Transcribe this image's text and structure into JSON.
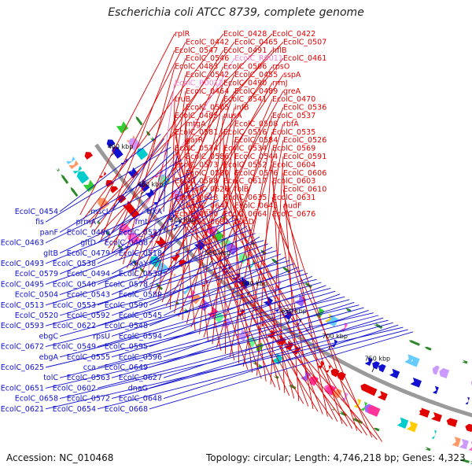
{
  "title": "Escherichia coli ATCC 8739, complete genome",
  "footer": {
    "accession": "Accession: NC_010468",
    "summary": "Topology: circular; Length: 4,746,218 bp; Genes: 4,323"
  },
  "colors": {
    "forward": "#e00000",
    "reverse": "#1010d0",
    "rna": "#f080d0",
    "backbone": "#9a9a9a",
    "tick_mark": "#2a8a2a"
  },
  "ticks": [
    "400 kbp",
    "450 kbp",
    "500 kbp",
    "550 kbp",
    "600 kbp",
    "650 kbp",
    "700 kbp",
    "750 kbp"
  ],
  "forward_labels": [
    "rplR",
    "EcolC_0428",
    "EcolC_0422",
    "EcolC_0442",
    "EcolC_0465",
    "EcolC_0507",
    "EcolC_0547",
    "EcolC_0491",
    "hflB",
    "EcolC_0546",
    "EcolC_R0011",
    "EcolC_0461",
    "EcolC_0483",
    "EcolC_0506",
    "rpsO",
    "EcolC_0542",
    "EcolC_0455",
    "sspA",
    "EcolC_R0012",
    "EcolC_0490",
    "rrmJ",
    "EcolC_0464",
    "EcolC_0489",
    "greA",
    "truB",
    "EcolC_0541",
    "EcolC_0470",
    "EcolC_0505",
    "infB",
    "EcolC_0536",
    "EcolC_0485",
    "nusA",
    "EcolC_0537",
    "mtgA",
    "EcolC_0508",
    "rbfA",
    "EcolC_0581",
    "EcolC_0516",
    "EcolC_0535",
    "garR",
    "EcolC_0584",
    "EcolC_0526",
    "EcolC_0574",
    "EcolC_0534",
    "EcolC_0569",
    "EcolC_0586",
    "EcolC_0544",
    "EcolC_0591",
    "EcolC_0573",
    "EcolC_0552",
    "EcolC_0604",
    "EcolC_0580",
    "EcolC_0576",
    "EcolC_0606",
    "EcolC_0588",
    "EcolC_0617",
    "EcolC_0603",
    "EcolC_0626",
    "folB",
    "EcolC_0610",
    "EcolC_0618",
    "EcolC_0635",
    "EcolC_0631",
    "EcolC_0647",
    "EcolC_0645",
    "nudF",
    "EcolC_0650",
    "EcolC_0664",
    "EcolC_0676",
    "EcolC_0681",
    "hybD"
  ],
  "reverse_labels": [
    "EcolC_0454",
    "mscL",
    "trkA",
    "fis",
    "prmA",
    "fmt",
    "panF",
    "EcolC_0486",
    "EcolC_0527",
    "EcolC_0463",
    "gltD",
    "EcolC_0468",
    "gltB",
    "EcolC_0479",
    "EcolC_0518",
    "EcolC_0493",
    "EcolC_0538",
    "kbaY",
    "EcolC_0579",
    "EcolC_0494",
    "EcolC_0539",
    "EcolC_0495",
    "EcolC_0540",
    "EcolC_0578",
    "EcolC_0504",
    "EcolC_0543",
    "EcolC_0589",
    "EcolC_0513",
    "EcolC_0553",
    "EcolC_0590",
    "EcolC_0520",
    "EcolC_0592",
    "EcolC_0545",
    "EcolC_0593",
    "EcolC_0622",
    "EcolC_0548",
    "ebgC",
    "rpsU",
    "EcolC_0594",
    "EcolC_0672",
    "EcolC_0549",
    "EcolC_0595",
    "ebgA",
    "EcolC_0555",
    "EcolC_0596",
    "EcolC_0625",
    "cca",
    "EcolC_0649",
    "tolC",
    "EcolC_0563",
    "EcolC_0627",
    "EcolC_0651",
    "EcolC_0602",
    "dnaG",
    "EcolC_0658",
    "EcolC_0572",
    "EcolC_0648",
    "EcolC_0621",
    "EcolC_0654",
    "EcolC_0668"
  ],
  "rna_labels": [
    "EcolC_R0011",
    "EcolC_R0012"
  ]
}
